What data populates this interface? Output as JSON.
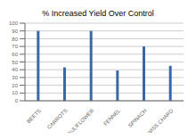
{
  "chart_data": {
    "type": "bar",
    "title": "% Increased Yield Over Control",
    "categories": [
      "BEETS",
      "CARROTS",
      "CAULIFLOWER",
      "FENNEL",
      "SPINACH",
      "SWISS CHARD"
    ],
    "values": [
      90,
      43,
      90,
      39,
      70,
      45
    ],
    "color": "#3C67A5",
    "ylim": [
      0,
      100
    ],
    "yticks": [
      0,
      10,
      20,
      30,
      40,
      50,
      60,
      70,
      80,
      90,
      100
    ],
    "grid": true
  }
}
